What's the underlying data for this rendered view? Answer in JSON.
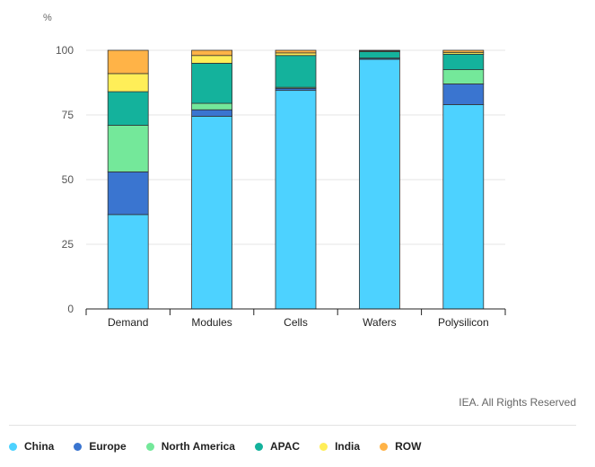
{
  "chart_data": {
    "type": "bar",
    "stacked": true,
    "categories": [
      "Demand",
      "Modules",
      "Cells",
      "Wafers",
      "Polysilicon"
    ],
    "ylabel": "%",
    "ylim": [
      0,
      100
    ],
    "yticks": [
      0,
      25,
      50,
      75,
      100
    ],
    "grid": true,
    "legend_position": "bottom",
    "series": [
      {
        "name": "China",
        "color": "#4dd2ff",
        "values": [
          36.5,
          74.5,
          84.5,
          96.5,
          79
        ]
      },
      {
        "name": "Europe",
        "color": "#3a75d0",
        "values": [
          16.5,
          2.5,
          0.8,
          0.4,
          8
        ]
      },
      {
        "name": "North America",
        "color": "#74e89a",
        "values": [
          18,
          2.5,
          0.4,
          0.1,
          5.5
        ]
      },
      {
        "name": "APAC",
        "color": "#14b29c",
        "values": [
          13,
          15.5,
          12.3,
          2.5,
          6
        ]
      },
      {
        "name": "India",
        "color": "#ffee58",
        "values": [
          7,
          3,
          1,
          0.3,
          0.7
        ]
      },
      {
        "name": "ROW",
        "color": "#ffb347",
        "values": [
          9,
          2,
          1,
          0.2,
          0.8
        ]
      }
    ]
  },
  "credit": "IEA. All Rights Reserved"
}
